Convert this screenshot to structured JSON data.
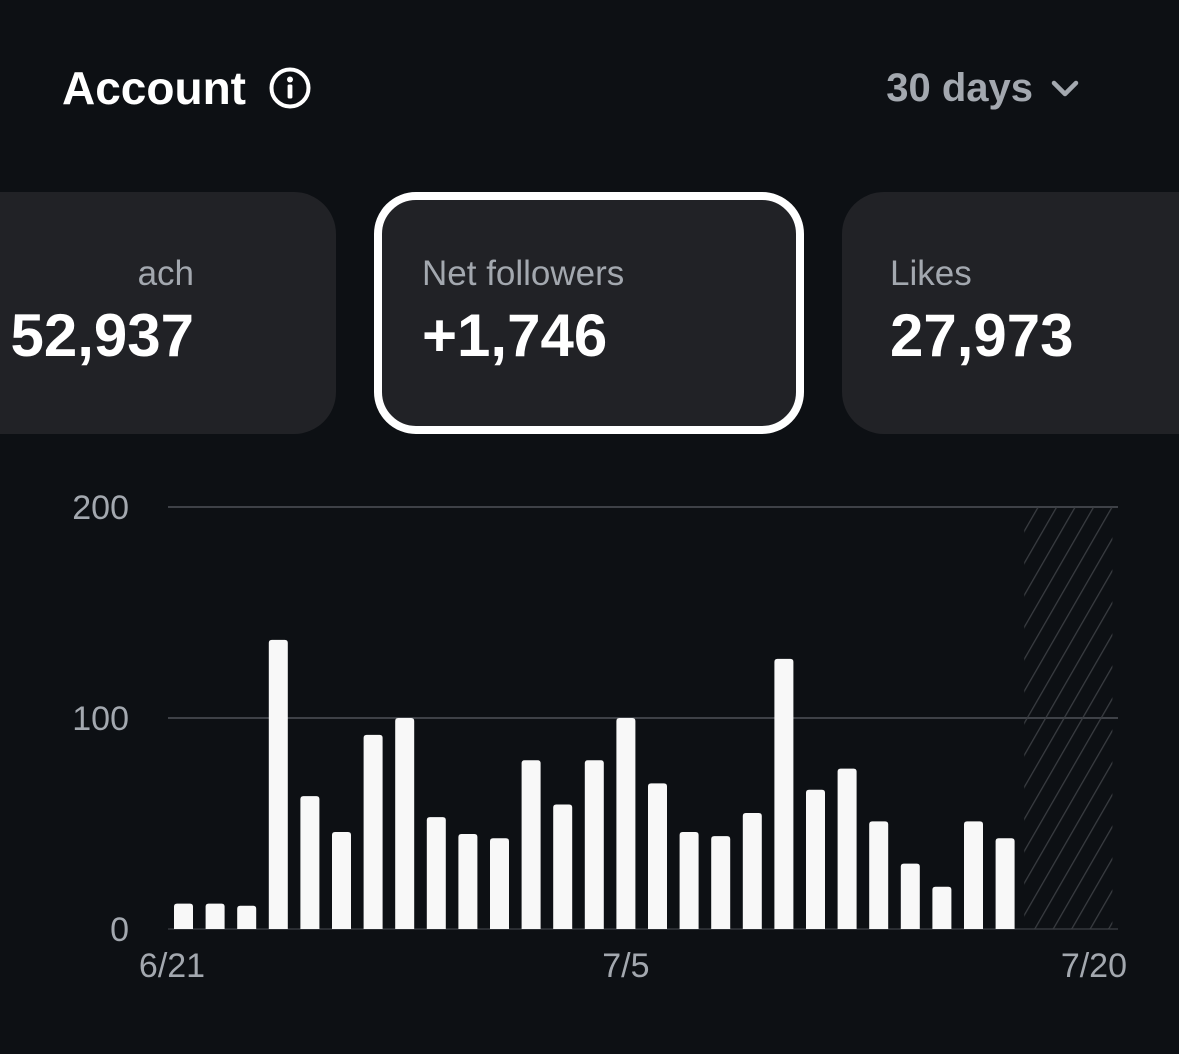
{
  "header": {
    "title": "Account",
    "info_icon": "info-circle-icon",
    "period_label": "30 days",
    "period_icon": "chevron-down-icon"
  },
  "cards": {
    "reach": {
      "label": "ach",
      "value": "52,937"
    },
    "net_followers": {
      "label": "Net followers",
      "value": "+1,746",
      "selected": true
    },
    "likes": {
      "label": "Likes",
      "value": "27,973"
    }
  },
  "colors": {
    "background": "#0d1014",
    "card": "#212226",
    "bar": "#f8f8f8",
    "muted_text": "#a3a8af",
    "gridline": "#3e4147"
  },
  "chart_data": {
    "type": "bar",
    "x": [
      "6/21",
      "6/22",
      "6/23",
      "6/24",
      "6/25",
      "6/26",
      "6/27",
      "6/28",
      "6/29",
      "6/30",
      "7/1",
      "7/2",
      "7/3",
      "7/4",
      "7/5",
      "7/6",
      "7/7",
      "7/8",
      "7/9",
      "7/10",
      "7/11",
      "7/12",
      "7/13",
      "7/14",
      "7/15",
      "7/16",
      "7/17",
      "7/18",
      "7/19",
      "7/20"
    ],
    "values": [
      12,
      12,
      11,
      137,
      63,
      46,
      92,
      100,
      53,
      45,
      43,
      80,
      59,
      80,
      100,
      69,
      46,
      44,
      55,
      128,
      66,
      76,
      51,
      31,
      20,
      51,
      43,
      null,
      null,
      null
    ],
    "x_tick_labels": [
      "6/21",
      "7/5",
      "7/20"
    ],
    "y_tick_labels": [
      "200",
      "100",
      "0"
    ],
    "ylim": [
      0,
      200
    ],
    "grid": true,
    "pending_days_hatched": [
      "7/18",
      "7/19",
      "7/20"
    ],
    "title": "",
    "xlabel": "",
    "ylabel": ""
  }
}
